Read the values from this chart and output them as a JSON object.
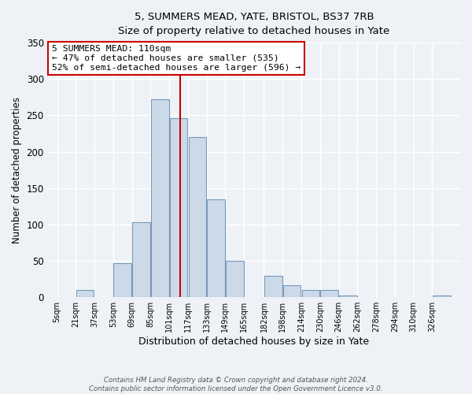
{
  "title1": "5, SUMMERS MEAD, YATE, BRISTOL, BS37 7RB",
  "title2": "Size of property relative to detached houses in Yate",
  "xlabel": "Distribution of detached houses by size in Yate",
  "ylabel": "Number of detached properties",
  "bin_labels": [
    "5sqm",
    "21sqm",
    "37sqm",
    "53sqm",
    "69sqm",
    "85sqm",
    "101sqm",
    "117sqm",
    "133sqm",
    "149sqm",
    "165sqm",
    "182sqm",
    "198sqm",
    "214sqm",
    "230sqm",
    "246sqm",
    "262sqm",
    "278sqm",
    "294sqm",
    "310sqm",
    "326sqm"
  ],
  "bin_edges": [
    5,
    21,
    37,
    53,
    69,
    85,
    101,
    117,
    133,
    149,
    165,
    182,
    198,
    214,
    230,
    246,
    262,
    278,
    294,
    310,
    326,
    342
  ],
  "bar_values": [
    0,
    10,
    0,
    47,
    103,
    272,
    246,
    220,
    135,
    50,
    0,
    29,
    17,
    10,
    10,
    2,
    0,
    0,
    0,
    0,
    2
  ],
  "bar_color": "#ccd9e8",
  "bar_edge_color": "#7799bb",
  "property_value": 110,
  "vline_color": "#cc0000",
  "annotation_title": "5 SUMMERS MEAD: 110sqm",
  "annotation_line1": "← 47% of detached houses are smaller (535)",
  "annotation_line2": "52% of semi-detached houses are larger (596) →",
  "annotation_box_color": "#ffffff",
  "annotation_box_edge": "#cc0000",
  "ylim": [
    0,
    350
  ],
  "yticks": [
    0,
    50,
    100,
    150,
    200,
    250,
    300,
    350
  ],
  "footer_line1": "Contains HM Land Registry data © Crown copyright and database right 2024.",
  "footer_line2": "Contains public sector information licensed under the Open Government Licence v3.0.",
  "bg_color": "#eef2f7"
}
